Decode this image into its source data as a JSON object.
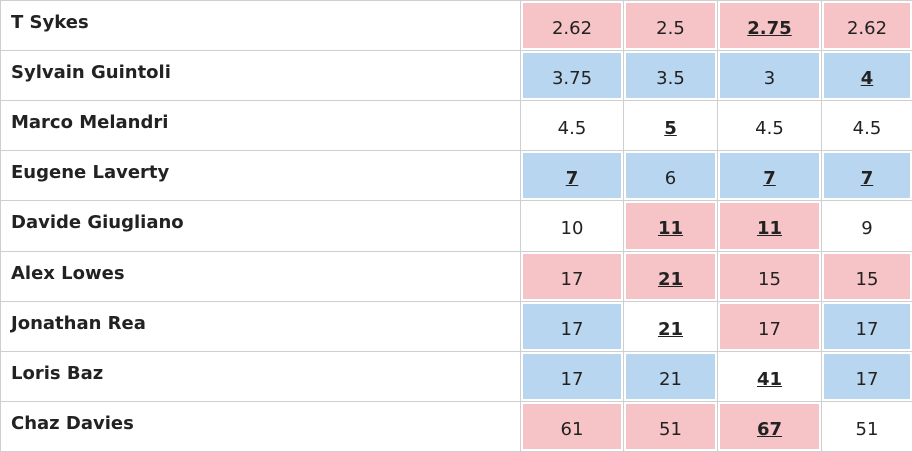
{
  "table": {
    "rows": [
      {
        "name": "T Sykes",
        "cells": [
          {
            "text": "2.62",
            "color": "#f6c4c7",
            "highlight": false
          },
          {
            "text": "2.5",
            "color": "#f6c4c7",
            "highlight": false
          },
          {
            "text": "2.75",
            "color": "#f6c4c7",
            "highlight": true
          },
          {
            "text": "2.62",
            "color": "#f6c4c7",
            "highlight": false
          }
        ]
      },
      {
        "name": "Sylvain Guintoli",
        "cells": [
          {
            "text": "3.75",
            "color": "#b9d6f0",
            "highlight": false
          },
          {
            "text": "3.5",
            "color": "#b9d6f0",
            "highlight": false
          },
          {
            "text": "3",
            "color": "#b9d6f0",
            "highlight": false
          },
          {
            "text": "4",
            "color": "#b9d6f0",
            "highlight": true
          }
        ]
      },
      {
        "name": "Marco Melandri",
        "cells": [
          {
            "text": "4.5",
            "color": "#ffffff",
            "highlight": false
          },
          {
            "text": "5",
            "color": "#ffffff",
            "highlight": true
          },
          {
            "text": "4.5",
            "color": "#ffffff",
            "highlight": false
          },
          {
            "text": "4.5",
            "color": "#ffffff",
            "highlight": false
          }
        ]
      },
      {
        "name": "Eugene Laverty",
        "cells": [
          {
            "text": "7",
            "color": "#b9d6f0",
            "highlight": true
          },
          {
            "text": "6",
            "color": "#b9d6f0",
            "highlight": false
          },
          {
            "text": "7",
            "color": "#b9d6f0",
            "highlight": true
          },
          {
            "text": "7",
            "color": "#b9d6f0",
            "highlight": true
          }
        ]
      },
      {
        "name": "Davide Giugliano",
        "cells": [
          {
            "text": "10",
            "color": "#ffffff",
            "highlight": false
          },
          {
            "text": "11",
            "color": "#f6c4c7",
            "highlight": true
          },
          {
            "text": "11",
            "color": "#f6c4c7",
            "highlight": true
          },
          {
            "text": "9",
            "color": "#ffffff",
            "highlight": false
          }
        ]
      },
      {
        "name": "Alex Lowes",
        "cells": [
          {
            "text": "17",
            "color": "#f6c4c7",
            "highlight": false
          },
          {
            "text": "21",
            "color": "#f6c4c7",
            "highlight": true
          },
          {
            "text": "15",
            "color": "#f6c4c7",
            "highlight": false
          },
          {
            "text": "15",
            "color": "#f6c4c7",
            "highlight": false
          }
        ]
      },
      {
        "name": "Jonathan Rea",
        "cells": [
          {
            "text": "17",
            "color": "#b9d6f0",
            "highlight": false
          },
          {
            "text": "21",
            "color": "#ffffff",
            "highlight": true
          },
          {
            "text": "17",
            "color": "#f6c4c7",
            "highlight": false
          },
          {
            "text": "17",
            "color": "#b9d6f0",
            "highlight": false
          }
        ]
      },
      {
        "name": "Loris Baz",
        "cells": [
          {
            "text": "17",
            "color": "#b9d6f0",
            "highlight": false
          },
          {
            "text": "21",
            "color": "#b9d6f0",
            "highlight": false
          },
          {
            "text": "41",
            "color": "#ffffff",
            "highlight": true
          },
          {
            "text": "17",
            "color": "#b9d6f0",
            "highlight": false
          }
        ]
      },
      {
        "name": "Chaz Davies",
        "cells": [
          {
            "text": "61",
            "color": "#f6c4c7",
            "highlight": false
          },
          {
            "text": "51",
            "color": "#f6c4c7",
            "highlight": false
          },
          {
            "text": "67",
            "color": "#f6c4c7",
            "highlight": true
          },
          {
            "text": "51",
            "color": "#ffffff",
            "highlight": false
          }
        ]
      }
    ]
  }
}
